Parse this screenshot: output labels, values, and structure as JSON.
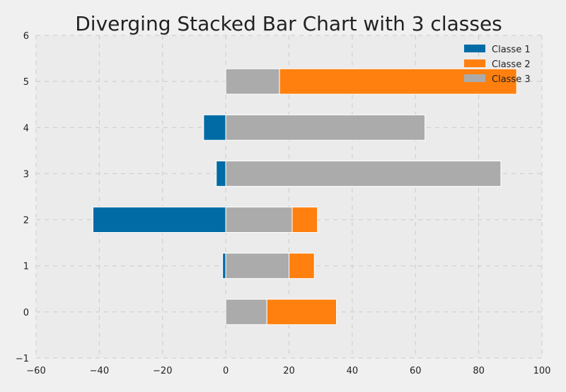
{
  "chart_data": {
    "type": "bar",
    "orientation": "horizontal",
    "stacking": "diverging",
    "title": "Diverging Stacked Bar Chart with 3 classes",
    "xlabel": "",
    "ylabel": "",
    "categories": [
      "0",
      "1",
      "2",
      "3",
      "4",
      "5"
    ],
    "series": [
      {
        "name": "Classe 1",
        "color": "#006ba4",
        "values": [
          0,
          -1,
          -42,
          -3,
          -7,
          0
        ]
      },
      {
        "name": "Classe 3",
        "color": "#ababab",
        "values": [
          13,
          20,
          21,
          87,
          63,
          17
        ]
      },
      {
        "name": "Classe 2",
        "color": "#ff800e",
        "values": [
          22,
          8,
          8,
          0,
          0,
          75
        ]
      }
    ],
    "legend_order": [
      "Classe 1",
      "Classe 2",
      "Classe 3"
    ],
    "legend_position": "top-right",
    "xlim": [
      -60,
      100
    ],
    "ylim": [
      -1,
      6
    ],
    "xticks": [
      -60,
      -40,
      -20,
      0,
      20,
      40,
      60,
      80,
      100
    ],
    "xtick_labels": [
      "−60",
      "−40",
      "−20",
      "0",
      "20",
      "40",
      "60",
      "80",
      "100"
    ],
    "yticks": [
      -1,
      0,
      1,
      2,
      3,
      4,
      5,
      6
    ],
    "ytick_labels": [
      "−1",
      "0",
      "1",
      "2",
      "3",
      "4",
      "5",
      "6"
    ],
    "grid": true,
    "colors": {
      "background": "#f0f0f0",
      "plot_background": "#ebebeb",
      "grid": "#cbcbcb",
      "text": "#222222"
    }
  }
}
